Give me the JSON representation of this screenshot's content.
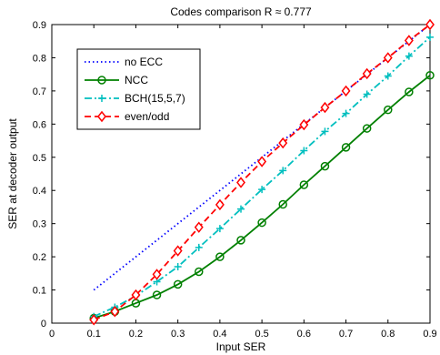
{
  "chart_data": {
    "type": "line",
    "title": "Codes comparison R ≈ 0.777",
    "xlabel": "Input SER",
    "ylabel": "SER at decoder output",
    "xlim": [
      0,
      0.9
    ],
    "ylim": [
      0,
      0.9
    ],
    "x_ticks": [
      "0",
      "0.1",
      "0.2",
      "0.3",
      "0.4",
      "0.5",
      "0.6",
      "0.7",
      "0.8",
      "0.9"
    ],
    "y_ticks": [
      "0",
      "0.1",
      "0.2",
      "0.3",
      "0.4",
      "0.5",
      "0.6",
      "0.7",
      "0.8",
      "0.9"
    ],
    "grid": false,
    "legend_position": "top-left",
    "series": [
      {
        "name": "no ECC",
        "color": "#0000ff",
        "line_style": "dotted",
        "marker": "none",
        "x": [
          0.1,
          0.9
        ],
        "y": [
          0.1,
          0.9
        ]
      },
      {
        "name": "NCC",
        "color": "#008000",
        "line_style": "solid",
        "marker": "circle",
        "x": [
          0.1,
          0.15,
          0.2,
          0.25,
          0.3,
          0.35,
          0.4,
          0.45,
          0.5,
          0.55,
          0.6,
          0.65,
          0.7,
          0.75,
          0.8,
          0.85,
          0.9
        ],
        "y": [
          0.015,
          0.035,
          0.06,
          0.085,
          0.117,
          0.155,
          0.2,
          0.25,
          0.303,
          0.358,
          0.417,
          0.473,
          0.53,
          0.587,
          0.643,
          0.697,
          0.747
        ]
      },
      {
        "name": "BCH(15,5,7)",
        "color": "#00bfbf",
        "line_style": "dashdot",
        "marker": "plus",
        "x": [
          0.1,
          0.15,
          0.2,
          0.25,
          0.3,
          0.35,
          0.4,
          0.45,
          0.5,
          0.55,
          0.6,
          0.65,
          0.7,
          0.75,
          0.8,
          0.85,
          0.9
        ],
        "y": [
          0.02,
          0.048,
          0.082,
          0.125,
          0.17,
          0.228,
          0.285,
          0.344,
          0.403,
          0.46,
          0.52,
          0.578,
          0.632,
          0.69,
          0.745,
          0.805,
          0.862
        ]
      },
      {
        "name": "even/odd",
        "color": "#ff0000",
        "line_style": "dashed",
        "marker": "diamond",
        "x": [
          0.1,
          0.15,
          0.2,
          0.25,
          0.3,
          0.35,
          0.4,
          0.45,
          0.5,
          0.55,
          0.6,
          0.65,
          0.7,
          0.75,
          0.8,
          0.85,
          0.9
        ],
        "y": [
          0.01,
          0.035,
          0.085,
          0.147,
          0.218,
          0.289,
          0.357,
          0.424,
          0.487,
          0.543,
          0.598,
          0.65,
          0.7,
          0.752,
          0.8,
          0.852,
          0.9
        ]
      }
    ]
  }
}
